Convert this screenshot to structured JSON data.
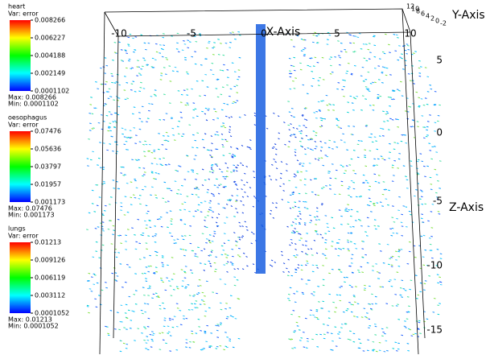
{
  "legends": [
    {
      "name": "heart",
      "var": "Var: error",
      "ticks": [
        "0.008266",
        "0.006227",
        "0.004188",
        "0.002149",
        "0.0001102"
      ],
      "max": "Max: 0.008266",
      "min": "Min: 0.0001102"
    },
    {
      "name": "oesophagus",
      "var": "Var: error",
      "ticks": [
        "0.07476",
        "0.05636",
        "0.03797",
        "0.01957",
        "0.001173"
      ],
      "max": "Max: 0.07476",
      "min": "Min: 0.001173"
    },
    {
      "name": "lungs",
      "var": "Var: error",
      "ticks": [
        "0.01213",
        "0.009126",
        "0.006119",
        "0.003112",
        "0.0001052"
      ],
      "max": "Max: 0.01213",
      "min": "Min: 0.0001052"
    }
  ],
  "axes": {
    "x": {
      "title": "X-Axis",
      "ticks": [
        "-10",
        "-5",
        "0",
        "5",
        "10"
      ]
    },
    "y": {
      "title": "Y-Axis",
      "ticks": [
        "12",
        "10",
        "8",
        "6",
        "4",
        "2",
        "0",
        "-2"
      ]
    },
    "z": {
      "title": "Z-Axis",
      "ticks": [
        "5",
        "0",
        "-5",
        "-10",
        "-15"
      ]
    }
  }
}
